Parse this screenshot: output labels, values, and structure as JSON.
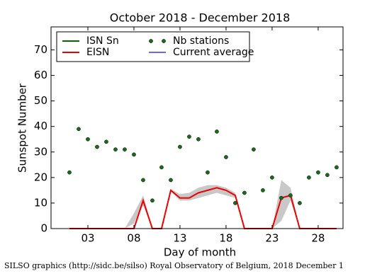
{
  "chart_data": {
    "type": "line",
    "title": "October 2018 - December 2018",
    "x_label": "Day of month",
    "y_label": "Sunspot Number",
    "footer": "SILSO graphics (http://sidc.be/silso) Royal Observatory of Belgium, 2018 December 1",
    "legend": "upper left",
    "xlim": [
      -1,
      30.7
    ],
    "ylim": [
      0,
      79
    ],
    "xticks": [
      {
        "value": 3,
        "label": "03"
      },
      {
        "value": 8,
        "label": "08"
      },
      13,
      18,
      23,
      28
    ],
    "yticks": [
      0,
      10,
      20,
      30,
      40,
      50,
      60,
      70
    ],
    "x": [
      1,
      2,
      3,
      4,
      5,
      6,
      7,
      8,
      9,
      10,
      11,
      12,
      13,
      14,
      15,
      16,
      17,
      18,
      19,
      20,
      21,
      22,
      23,
      24,
      25,
      26,
      27,
      28,
      29,
      30
    ],
    "series": [
      {
        "name": "ISN Sn",
        "color": "#006600",
        "kind": "line",
        "values": [
          null,
          null,
          null,
          null,
          null,
          null,
          null,
          null,
          null,
          null,
          null,
          null,
          null,
          null,
          null,
          null,
          null,
          null,
          null,
          null,
          null,
          null,
          null,
          null,
          null,
          null,
          null,
          null,
          null,
          null
        ]
      },
      {
        "name": "EISN",
        "color": "#ee0000",
        "band_color": "#c8c8c8",
        "kind": "line",
        "values": [
          0,
          0,
          0,
          0,
          0,
          0,
          0,
          0,
          11,
          0,
          0,
          15,
          12,
          12,
          14,
          15,
          16,
          15,
          13,
          0,
          0,
          0,
          0,
          12,
          13,
          0,
          0,
          0,
          0,
          0
        ],
        "upper": [
          null,
          null,
          null,
          null,
          null,
          null,
          0,
          6,
          13,
          0,
          null,
          15.5,
          13.5,
          14,
          16,
          17,
          17,
          16,
          14,
          null,
          null,
          null,
          0,
          19,
          16,
          0,
          null,
          null,
          null,
          null
        ],
        "lower": [
          null,
          null,
          null,
          null,
          null,
          null,
          0,
          2,
          9,
          0,
          null,
          14.5,
          11,
          11,
          12,
          13,
          14,
          13,
          12,
          null,
          null,
          null,
          0,
          3,
          11,
          0,
          null,
          null,
          null,
          null
        ]
      },
      {
        "name": "Nb stations",
        "color": "#1a6b1a",
        "kind": "scatter",
        "values": [
          22,
          39,
          35,
          32,
          34,
          31,
          31,
          29,
          19,
          11,
          24,
          19,
          32,
          36,
          35,
          22,
          38,
          28,
          10,
          14,
          31,
          15,
          20,
          12,
          13,
          10,
          20,
          22,
          21,
          24
        ]
      },
      {
        "name": "Current average",
        "color": "#6666ff",
        "kind": "line",
        "values": [
          null,
          null,
          null,
          null,
          null,
          null,
          null,
          null,
          null,
          null,
          null,
          null,
          null,
          null,
          null,
          null,
          null,
          null,
          null,
          null,
          null,
          null,
          null,
          null,
          null,
          null,
          null,
          null,
          null,
          null
        ]
      }
    ]
  }
}
